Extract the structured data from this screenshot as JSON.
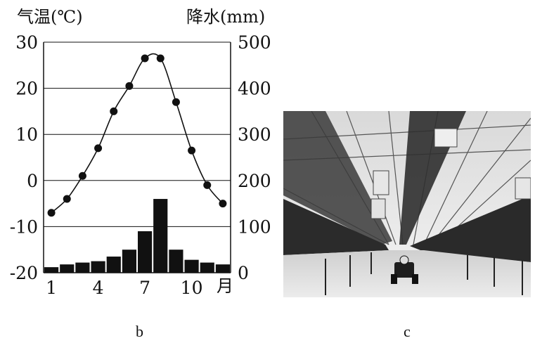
{
  "chart_data": {
    "type": "bar+line",
    "left_axis_label": "气温(℃)",
    "right_axis_label": "降水(mm)",
    "x_unit_label": "月",
    "x_tick_labels": [
      "1",
      "4",
      "7",
      "10"
    ],
    "categories": [
      1,
      2,
      3,
      4,
      5,
      6,
      7,
      8,
      9,
      10,
      11,
      12
    ],
    "temperature_ylim": [
      -20,
      30
    ],
    "temperature_ticks": [
      "30",
      "20",
      "10",
      "0",
      "-10",
      "-20"
    ],
    "precip_ylim": [
      0,
      500
    ],
    "precip_ticks": [
      "500",
      "400",
      "300",
      "200",
      "100",
      "0"
    ],
    "temperature": [
      -7,
      -4,
      1,
      7,
      15,
      20.5,
      26.5,
      26.5,
      17,
      6.5,
      -1,
      -5
    ],
    "precipitation": [
      12,
      18,
      22,
      25,
      35,
      50,
      90,
      160,
      50,
      28,
      22,
      18
    ],
    "grid": true
  },
  "captions": {
    "chart": "b",
    "photo": "c"
  }
}
